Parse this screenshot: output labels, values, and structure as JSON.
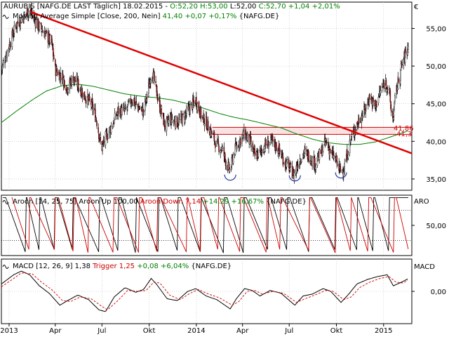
{
  "currency_symbol": "€",
  "panels": {
    "price": {
      "legend_line1": [
        {
          "text": "AURUBIS [NAFG.DE LAST Täglich] 18.02.2015 - ",
          "color": "#000000"
        },
        {
          "text": "O:52,20 ",
          "color": "#008000"
        },
        {
          "text": "H:53,00 ",
          "color": "#008000"
        },
        {
          "text": "L:52,00 ",
          "color": "#000000"
        },
        {
          "text": "C:52,70 +1,04 +2,01%",
          "color": "#008000"
        }
      ],
      "legend_line2": [
        {
          "text": "Moving Average Simple [Close, 200, Nein] ",
          "color": "#000000"
        },
        {
          "text": "41,40 +0,07 +0,17%",
          "color": "#008000"
        },
        {
          "text": " {NAFG.DE}",
          "color": "#000000"
        }
      ],
      "price_tags": {
        "top": "41,86",
        "bottom": "41,3"
      }
    },
    "aroon": {
      "legend": [
        {
          "text": "Aroon [14, 25, 75] ",
          "color": "#000000"
        },
        {
          "text": "Aroon Up 100,00 ",
          "color": "#000000"
        },
        {
          "text": "Aroon Down 7,14 ",
          "color": "#cc0000"
        },
        {
          "text": "+14,29 +16,67%",
          "color": "#008000"
        },
        {
          "text": " {NAFG.DE}",
          "color": "#000000"
        }
      ],
      "axis_name": "ARO"
    },
    "macd": {
      "legend": [
        {
          "text": "MACD [12, 26, 9] 1,38 ",
          "color": "#000000"
        },
        {
          "text": "Trigger 1,25 ",
          "color": "#cc0000"
        },
        {
          "text": "+0,08 +6,04%",
          "color": "#008000"
        },
        {
          "text": " {NAFG.DE}",
          "color": "#000000"
        }
      ],
      "axis_name": "MACD"
    }
  },
  "chart_data": [
    {
      "type": "candlestick",
      "panel": "price",
      "ylim": [
        33.5,
        58.5
      ],
      "yticks": [
        35,
        40,
        45,
        50,
        55
      ],
      "ytick_labels": [
        "35,00",
        "40,00",
        "45,00",
        "50,00",
        "55,00"
      ],
      "x_range": [
        "2012-12-17",
        "2015-02-25"
      ],
      "xticks": [
        {
          "x": "2013-01-01",
          "label": "2013"
        },
        {
          "x": "2013-04-01",
          "label": "Apr"
        },
        {
          "x": "2013-07-01",
          "label": "Jul"
        },
        {
          "x": "2013-10-01",
          "label": "Okt"
        },
        {
          "x": "2014-01-01",
          "label": "2014"
        },
        {
          "x": "2014-04-01",
          "label": "Apr"
        },
        {
          "x": "2014-07-01",
          "label": "Jul"
        },
        {
          "x": "2014-10-01",
          "label": "Okt"
        },
        {
          "x": "2015-01-01",
          "label": "2015"
        }
      ],
      "close_anchors": [
        [
          "2012-12-17",
          49.5
        ],
        [
          "2012-12-28",
          52.0
        ],
        [
          "2013-01-15",
          55.5
        ],
        [
          "2013-01-28",
          56.5
        ],
        [
          "2013-02-10",
          57.5
        ],
        [
          "2013-02-25",
          55.5
        ],
        [
          "2013-03-10",
          54.5
        ],
        [
          "2013-03-25",
          53.0
        ],
        [
          "2013-04-01",
          49.5
        ],
        [
          "2013-04-15",
          48.5
        ],
        [
          "2013-04-25",
          47.0
        ],
        [
          "2013-05-05",
          48.5
        ],
        [
          "2013-05-15",
          47.5
        ],
        [
          "2013-05-28",
          46.0
        ],
        [
          "2013-06-10",
          45.0
        ],
        [
          "2013-06-20",
          43.0
        ],
        [
          "2013-06-30",
          39.0
        ],
        [
          "2013-07-08",
          40.5
        ],
        [
          "2013-07-20",
          42.0
        ],
        [
          "2013-08-01",
          44.0
        ],
        [
          "2013-08-15",
          44.0
        ],
        [
          "2013-08-28",
          45.5
        ],
        [
          "2013-09-10",
          44.5
        ],
        [
          "2013-09-20",
          44.0
        ],
        [
          "2013-10-01",
          47.5
        ],
        [
          "2013-10-06",
          49.5
        ],
        [
          "2013-10-14",
          47.0
        ],
        [
          "2013-10-22",
          44.5
        ],
        [
          "2013-11-01",
          42.0
        ],
        [
          "2013-11-12",
          43.0
        ],
        [
          "2013-11-25",
          42.5
        ],
        [
          "2013-12-05",
          43.0
        ],
        [
          "2013-12-15",
          44.0
        ],
        [
          "2013-12-31",
          45.5
        ],
        [
          "2014-01-10",
          43.5
        ],
        [
          "2014-01-20",
          42.5
        ],
        [
          "2014-01-31",
          41.0
        ],
        [
          "2014-02-10",
          39.5
        ],
        [
          "2014-02-20",
          39.0
        ],
        [
          "2014-03-01",
          37.0
        ],
        [
          "2014-03-08",
          36.0
        ],
        [
          "2014-03-15",
          38.5
        ],
        [
          "2014-03-25",
          40.0
        ],
        [
          "2014-04-05",
          41.0
        ],
        [
          "2014-04-15",
          40.0
        ],
        [
          "2014-04-25",
          38.0
        ],
        [
          "2014-05-05",
          38.5
        ],
        [
          "2014-05-15",
          39.5
        ],
        [
          "2014-05-28",
          40.0
        ],
        [
          "2014-06-10",
          39.0
        ],
        [
          "2014-06-20",
          37.5
        ],
        [
          "2014-07-01",
          36.5
        ],
        [
          "2014-07-10",
          35.5
        ],
        [
          "2014-07-20",
          37.5
        ],
        [
          "2014-07-30",
          38.5
        ],
        [
          "2014-08-10",
          38.0
        ],
        [
          "2014-08-20",
          37.0
        ],
        [
          "2014-09-01",
          38.5
        ],
        [
          "2014-09-10",
          40.0
        ],
        [
          "2014-09-20",
          38.5
        ],
        [
          "2014-09-30",
          37.5
        ],
        [
          "2014-10-08",
          36.0
        ],
        [
          "2014-10-16",
          36.5
        ],
        [
          "2014-10-28",
          40.0
        ],
        [
          "2014-11-05",
          41.5
        ],
        [
          "2014-11-15",
          43.0
        ],
        [
          "2014-11-25",
          44.0
        ],
        [
          "2014-12-05",
          46.0
        ],
        [
          "2014-12-15",
          44.5
        ],
        [
          "2014-12-25",
          46.5
        ],
        [
          "2015-01-05",
          48.0
        ],
        [
          "2015-01-12",
          46.5
        ],
        [
          "2015-01-18",
          42.5
        ],
        [
          "2015-01-25",
          46.5
        ],
        [
          "2015-02-05",
          50.0
        ],
        [
          "2015-02-12",
          51.5
        ],
        [
          "2015-02-18",
          52.7
        ]
      ],
      "moving_average": [
        [
          "2012-12-17",
          42.5
        ],
        [
          "2013-01-15",
          44.0
        ],
        [
          "2013-02-15",
          45.5
        ],
        [
          "2013-03-15",
          46.7
        ],
        [
          "2013-04-15",
          47.4
        ],
        [
          "2013-05-15",
          47.6
        ],
        [
          "2013-06-15",
          47.3
        ],
        [
          "2013-07-15",
          46.8
        ],
        [
          "2013-08-15",
          46.3
        ],
        [
          "2013-09-15",
          46.0
        ],
        [
          "2013-10-15",
          45.8
        ],
        [
          "2013-11-15",
          45.5
        ],
        [
          "2013-12-15",
          45.0
        ],
        [
          "2014-01-15",
          44.4
        ],
        [
          "2014-02-15",
          43.7
        ],
        [
          "2014-03-15",
          43.2
        ],
        [
          "2014-04-15",
          42.8
        ],
        [
          "2014-05-15",
          42.3
        ],
        [
          "2014-06-15",
          41.8
        ],
        [
          "2014-07-15",
          41.0
        ],
        [
          "2014-08-15",
          40.3
        ],
        [
          "2014-09-15",
          39.8
        ],
        [
          "2014-10-15",
          39.6
        ],
        [
          "2014-11-15",
          39.6
        ],
        [
          "2014-12-15",
          39.9
        ],
        [
          "2015-01-15",
          40.6
        ],
        [
          "2015-02-18",
          41.4
        ]
      ],
      "trendline": [
        [
          "2013-02-12",
          57.2
        ],
        [
          "2015-02-25",
          38.4
        ]
      ],
      "horizontal_band": {
        "start": "2014-02-01",
        "end": "2015-01-25",
        "upper": 41.86,
        "lower": 41.3
      },
      "bottom_markers": [
        {
          "x": "2014-03-08",
          "y": 35.3
        },
        {
          "x": "2014-07-12",
          "y": 35.2
        },
        {
          "x": "2014-10-10",
          "y": 35.6
        }
      ],
      "last": {
        "open": 52.2,
        "high": 53.0,
        "low": 52.0,
        "close": 52.7
      }
    },
    {
      "type": "line",
      "panel": "aroon",
      "ylim": [
        0,
        100
      ],
      "yticks": [
        50
      ],
      "ytick_labels": [
        "50,00"
      ],
      "reference_lines": [
        75,
        25
      ],
      "x_range": [
        "2012-12-17",
        "2015-02-25"
      ],
      "series": [
        {
          "name": "Aroon Up",
          "color": "#000000",
          "period_days": 34,
          "phase_days": 3,
          "last_value": 100.0
        },
        {
          "name": "Aroon Down",
          "color": "#cc0000",
          "period_days": 38,
          "phase_days": 20,
          "last_value": 7.14
        }
      ]
    },
    {
      "type": "line",
      "panel": "macd",
      "ylim": [
        -3.5,
        3.5
      ],
      "yticks": [
        0
      ],
      "ytick_labels": [
        "0,00"
      ],
      "x_range": [
        "2012-12-17",
        "2015-02-25"
      ],
      "series": [
        {
          "name": "MACD",
          "color": "#000000",
          "values": [
            [
              "2012-12-17",
              0.8
            ],
            [
              "2013-01-10",
              1.8
            ],
            [
              "2013-01-25",
              2.2
            ],
            [
              "2013-02-10",
              1.8
            ],
            [
              "2013-03-01",
              0.6
            ],
            [
              "2013-03-20",
              -0.2
            ],
            [
              "2013-04-10",
              -1.5
            ],
            [
              "2013-04-25",
              -1.0
            ],
            [
              "2013-05-15",
              -0.4
            ],
            [
              "2013-06-05",
              -0.9
            ],
            [
              "2013-06-25",
              -2.0
            ],
            [
              "2013-07-08",
              -2.2
            ],
            [
              "2013-07-25",
              -0.6
            ],
            [
              "2013-08-15",
              0.4
            ],
            [
              "2013-09-05",
              -0.1
            ],
            [
              "2013-09-20",
              0.2
            ],
            [
              "2013-10-05",
              1.4
            ],
            [
              "2013-10-15",
              0.8
            ],
            [
              "2013-11-05",
              -0.8
            ],
            [
              "2013-11-25",
              -1.0
            ],
            [
              "2013-12-15",
              0.0
            ],
            [
              "2013-12-31",
              0.3
            ],
            [
              "2014-01-20",
              -0.5
            ],
            [
              "2014-02-10",
              -0.9
            ],
            [
              "2014-03-08",
              -1.9
            ],
            [
              "2014-03-20",
              -0.8
            ],
            [
              "2014-04-05",
              0.3
            ],
            [
              "2014-04-20",
              0.1
            ],
            [
              "2014-05-05",
              -0.5
            ],
            [
              "2014-05-25",
              0.1
            ],
            [
              "2014-06-15",
              -0.2
            ],
            [
              "2014-07-12",
              -1.5
            ],
            [
              "2014-07-28",
              -0.5
            ],
            [
              "2014-08-15",
              -0.3
            ],
            [
              "2014-09-05",
              0.3
            ],
            [
              "2014-09-20",
              0.0
            ],
            [
              "2014-10-10",
              -1.2
            ],
            [
              "2014-10-25",
              -0.3
            ],
            [
              "2014-11-10",
              0.8
            ],
            [
              "2014-12-01",
              1.3
            ],
            [
              "2014-12-20",
              1.6
            ],
            [
              "2015-01-08",
              1.8
            ],
            [
              "2015-01-20",
              0.6
            ],
            [
              "2015-02-05",
              1.0
            ],
            [
              "2015-02-18",
              1.38
            ]
          ]
        },
        {
          "name": "Trigger",
          "color": "#cc0000",
          "dashed": true,
          "values": [
            [
              "2012-12-17",
              0.5
            ],
            [
              "2013-01-10",
              1.4
            ],
            [
              "2013-01-25",
              2.0
            ],
            [
              "2013-02-15",
              1.9
            ],
            [
              "2013-03-05",
              1.0
            ],
            [
              "2013-03-25",
              0.2
            ],
            [
              "2013-04-15",
              -1.0
            ],
            [
              "2013-05-01",
              -1.1
            ],
            [
              "2013-05-20",
              -0.6
            ],
            [
              "2013-06-10",
              -0.8
            ],
            [
              "2013-06-30",
              -1.6
            ],
            [
              "2013-07-12",
              -2.0
            ],
            [
              "2013-08-01",
              -1.0
            ],
            [
              "2013-08-20",
              0.1
            ],
            [
              "2013-09-10",
              0.0
            ],
            [
              "2013-09-25",
              0.1
            ],
            [
              "2013-10-10",
              1.0
            ],
            [
              "2013-10-22",
              0.9
            ],
            [
              "2013-11-10",
              -0.4
            ],
            [
              "2013-11-30",
              -0.9
            ],
            [
              "2013-12-20",
              -0.2
            ],
            [
              "2014-01-05",
              0.2
            ],
            [
              "2014-01-25",
              -0.3
            ],
            [
              "2014-02-15",
              -0.7
            ],
            [
              "2014-03-12",
              -1.5
            ],
            [
              "2014-03-25",
              -1.1
            ],
            [
              "2014-04-10",
              0.0
            ],
            [
              "2014-04-25",
              0.1
            ],
            [
              "2014-05-10",
              -0.3
            ],
            [
              "2014-05-30",
              0.0
            ],
            [
              "2014-06-20",
              -0.2
            ],
            [
              "2014-07-15",
              -1.2
            ],
            [
              "2014-08-01",
              -0.8
            ],
            [
              "2014-08-20",
              -0.4
            ],
            [
              "2014-09-10",
              0.1
            ],
            [
              "2014-09-25",
              0.0
            ],
            [
              "2014-10-15",
              -0.9
            ],
            [
              "2014-10-30",
              -0.6
            ],
            [
              "2014-11-15",
              0.4
            ],
            [
              "2014-12-05",
              1.0
            ],
            [
              "2014-12-25",
              1.4
            ],
            [
              "2015-01-12",
              1.6
            ],
            [
              "2015-01-25",
              1.0
            ],
            [
              "2015-02-08",
              0.9
            ],
            [
              "2015-02-18",
              1.25
            ]
          ]
        }
      ]
    }
  ]
}
